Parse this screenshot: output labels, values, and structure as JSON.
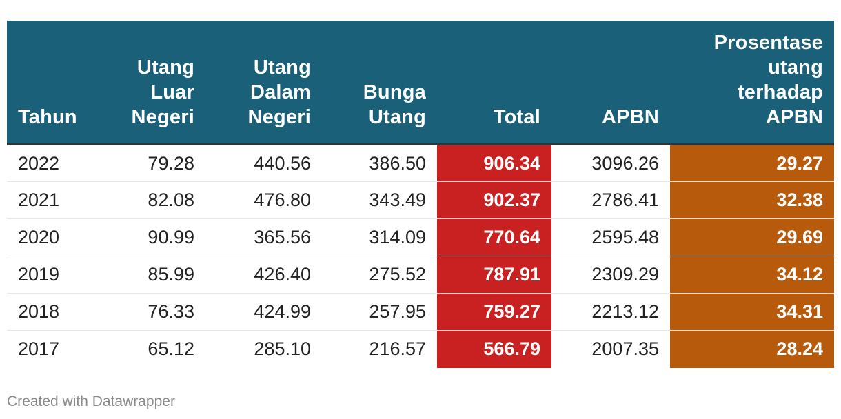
{
  "colors": {
    "header_bg": "#1a6079",
    "header_text": "#ffffff",
    "total_bg": "#c92121",
    "pct_bg": "#b85a0c"
  },
  "chart_data": {
    "type": "table",
    "columns": [
      "Tahun",
      "Utang Luar Negeri",
      "Utang Dalam Negeri",
      "Bunga Utang",
      "Total",
      "APBN",
      "Prosentase utang terhadap APBN"
    ],
    "rows": [
      [
        "2022",
        "79.28",
        "440.56",
        "386.50",
        "906.34",
        "3096.26",
        "29.27"
      ],
      [
        "2021",
        "82.08",
        "476.80",
        "343.49",
        "902.37",
        "2786.41",
        "32.38"
      ],
      [
        "2020",
        "90.99",
        "365.56",
        "314.09",
        "770.64",
        "2595.48",
        "29.69"
      ],
      [
        "2019",
        "85.99",
        "426.40",
        "275.52",
        "787.91",
        "2309.29",
        "34.12"
      ],
      [
        "2018",
        "76.33",
        "424.99",
        "257.95",
        "759.27",
        "2213.12",
        "34.31"
      ],
      [
        "2017",
        "65.12",
        "285.10",
        "216.57",
        "566.79",
        "2007.35",
        "28.24"
      ]
    ]
  },
  "footer": {
    "credit": "Created with Datawrapper"
  }
}
